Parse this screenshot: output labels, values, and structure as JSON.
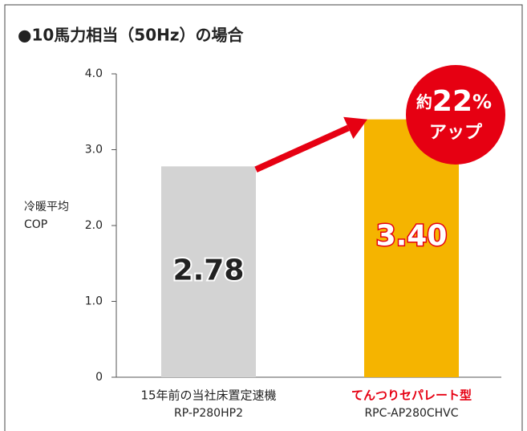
{
  "chart_data": {
    "type": "bar",
    "title": "●10馬力相当（50Hz）の場合",
    "ylabel": [
      "冷暖平均",
      "COP"
    ],
    "categories": [
      "15年前の当社床置定速機",
      "てんつりセパレート型"
    ],
    "models": [
      "RP-P280HP2",
      "RPC-AP280CHVC"
    ],
    "values": [
      2.78,
      3.4
    ],
    "value_labels": [
      "2.78",
      "3.40"
    ],
    "colors": [
      "#d3d3d3",
      "#f5b400"
    ],
    "ylim": [
      0,
      4
    ],
    "yticks": [
      0,
      {
        "value": 1,
        "label": "1.0"
      },
      {
        "value": 2,
        "label": "2.0"
      },
      {
        "value": 3,
        "label": "3.0"
      },
      {
        "value": 4,
        "label": "4.0"
      }
    ],
    "annotation": {
      "prefix": "約",
      "number": "22",
      "unit": "%",
      "line2": "アップ"
    },
    "highlight_color": "#e60012"
  }
}
